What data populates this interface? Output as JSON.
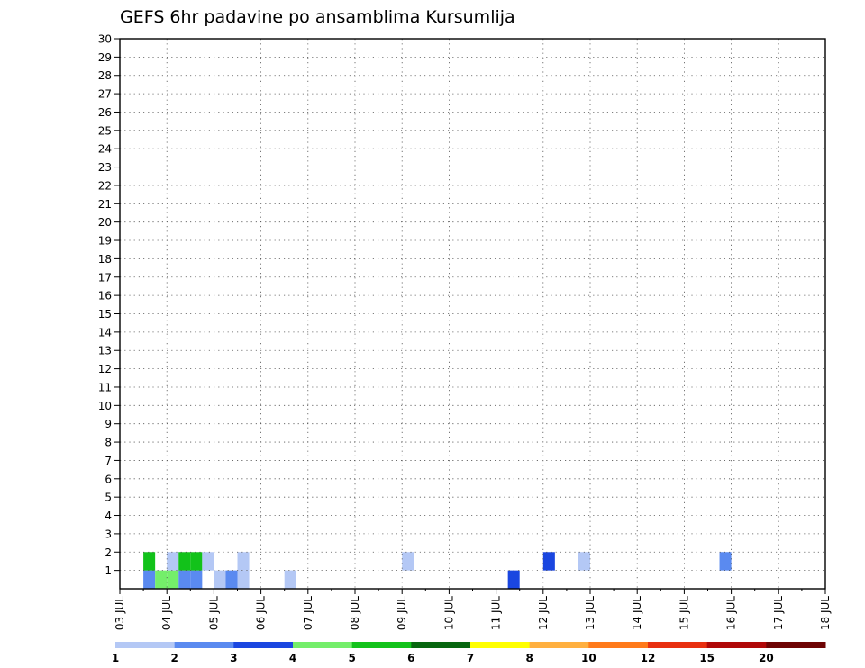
{
  "chart_data": {
    "type": "heatmap",
    "title": "GEFS 6hr padavine po ansamblima Kursumlija",
    "xlabel": "",
    "ylabel": "",
    "x_ticks": [
      "03 JUL",
      "04 JUL",
      "05 JUL",
      "06 JUL",
      "07 JUL",
      "08 JUL",
      "09 JUL",
      "10 JUL",
      "11 JUL",
      "12 JUL",
      "13 JUL",
      "14 JUL",
      "15 JUL",
      "16 JUL",
      "17 JUL",
      "18 JUL"
    ],
    "y_ticks": [
      1,
      2,
      3,
      4,
      5,
      6,
      7,
      8,
      9,
      10,
      11,
      12,
      13,
      14,
      15,
      16,
      17,
      18,
      19,
      20,
      21,
      22,
      23,
      24,
      25,
      26,
      27,
      28,
      29,
      30
    ],
    "xlim_days": [
      0,
      15
    ],
    "ylim_members": [
      0,
      30
    ],
    "grid": true,
    "legend": {
      "position": "bottom",
      "levels": [
        1,
        2,
        3,
        4,
        5,
        6,
        7,
        8,
        10,
        12,
        15,
        20
      ],
      "colors": [
        "#b4c8f5",
        "#5a8af0",
        "#1a46e0",
        "#74ee6a",
        "#12c21a",
        "#07660f",
        "#ffff00",
        "#ffb040",
        "#ff7a1a",
        "#e83010",
        "#b00808",
        "#6e0404"
      ]
    },
    "values": [
      {
        "member": 0,
        "day": 0.5,
        "level": 2
      },
      {
        "member": 0,
        "day": 0.75,
        "level": 4
      },
      {
        "member": 0,
        "day": 1.0,
        "level": 4
      },
      {
        "member": 0,
        "day": 1.25,
        "level": 2
      },
      {
        "member": 0,
        "day": 1.5,
        "level": 2
      },
      {
        "member": 0,
        "day": 2.0,
        "level": 1
      },
      {
        "member": 0,
        "day": 2.25,
        "level": 2
      },
      {
        "member": 0,
        "day": 2.5,
        "level": 1
      },
      {
        "member": 0,
        "day": 3.5,
        "level": 1
      },
      {
        "member": 0,
        "day": 8.25,
        "level": 3
      },
      {
        "member": 1,
        "day": 0.5,
        "level": 5
      },
      {
        "member": 1,
        "day": 1.0,
        "level": 1
      },
      {
        "member": 1,
        "day": 1.25,
        "level": 5
      },
      {
        "member": 1,
        "day": 1.5,
        "level": 5
      },
      {
        "member": 1,
        "day": 1.75,
        "level": 1
      },
      {
        "member": 1,
        "day": 2.5,
        "level": 1
      },
      {
        "member": 1,
        "day": 6.0,
        "level": 1
      },
      {
        "member": 1,
        "day": 9.75,
        "level": 1
      },
      {
        "member": 1,
        "day": 12.75,
        "level": 2
      },
      {
        "member": 1,
        "day": 9.0,
        "level": 3
      }
    ]
  }
}
